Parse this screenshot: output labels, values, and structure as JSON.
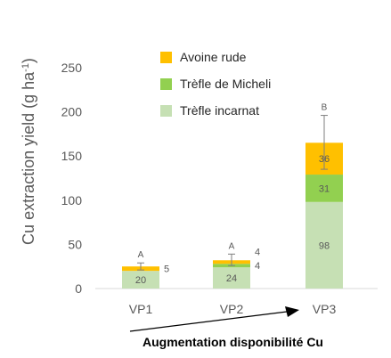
{
  "chart_data": {
    "type": "bar",
    "stacked": true,
    "categories": [
      "VP1",
      "VP2",
      "VP3"
    ],
    "series": [
      {
        "name": "Trèfle incarnat",
        "values": [
          20,
          24,
          98
        ],
        "color": "#c6e0b4"
      },
      {
        "name": "Trèfle de Micheli",
        "values": [
          0,
          4,
          31
        ],
        "color": "#92d050"
      },
      {
        "name": "Avoine rude",
        "values": [
          5,
          4,
          36
        ],
        "color": "#ffc000"
      }
    ],
    "segment_labels": [
      {
        "category": "VP1",
        "series": "Trèfle incarnat",
        "text": "20",
        "position": "inside"
      },
      {
        "category": "VP1",
        "series": "Avoine rude",
        "text": "5",
        "position": "right"
      },
      {
        "category": "VP2",
        "series": "Trèfle incarnat",
        "text": "24",
        "position": "inside"
      },
      {
        "category": "VP2",
        "series": "Trèfle de Micheli",
        "text": "4",
        "position": "right"
      },
      {
        "category": "VP2",
        "series": "Avoine rude",
        "text": "4",
        "position": "right-above"
      },
      {
        "category": "VP3",
        "series": "Trèfle incarnat",
        "text": "98",
        "position": "inside"
      },
      {
        "category": "VP3",
        "series": "Trèfle de Micheli",
        "text": "31",
        "position": "inside"
      },
      {
        "category": "VP3",
        "series": "Avoine rude",
        "text": "36",
        "position": "inside"
      }
    ],
    "error_bars": [
      {
        "category": "VP1",
        "low": 21,
        "high": 29
      },
      {
        "category": "VP2",
        "low": 26,
        "high": 39
      },
      {
        "category": "VP3",
        "low": 135,
        "high": 196
      }
    ],
    "significance_letters": [
      "A",
      "A",
      "B"
    ],
    "ylabel_main": "Cu extraction yield (g ha",
    "ylabel_exp": "-1",
    "ylabel_close": ")",
    "yticks": [
      0,
      50,
      100,
      150,
      200,
      250
    ],
    "ylim": [
      0,
      250
    ],
    "grid": false,
    "legend": {
      "placement": "top-center",
      "order": [
        "Avoine rude",
        "Trèfle de Micheli",
        "Trèfle incarnat"
      ]
    },
    "annotation": "Augmentation disponibilité Cu"
  }
}
